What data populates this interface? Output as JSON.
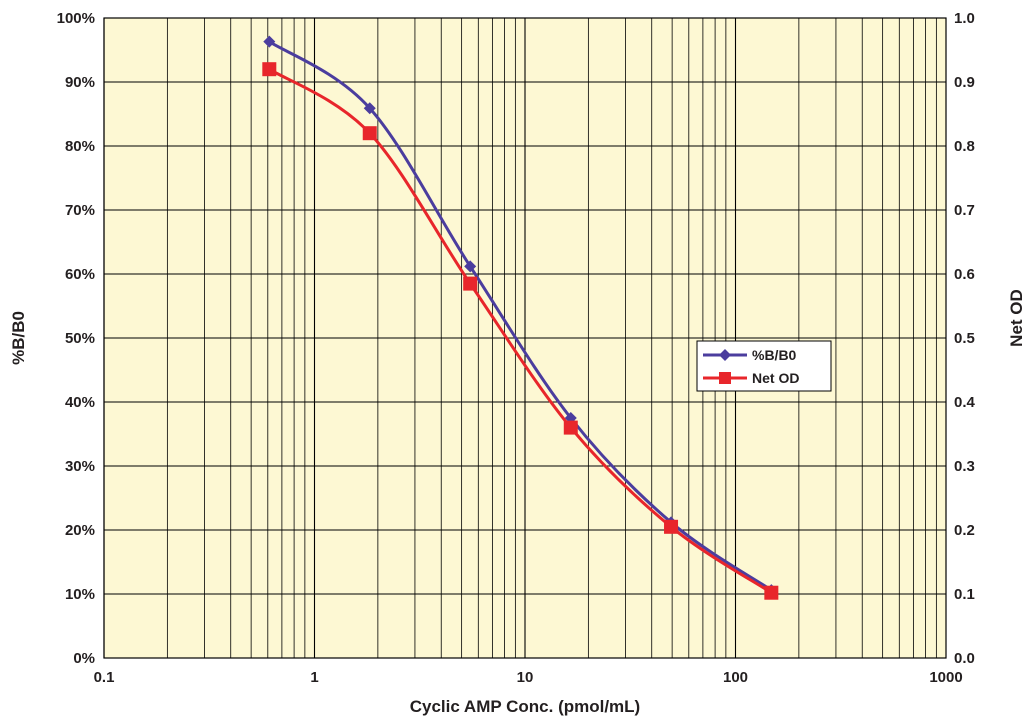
{
  "chart_data": {
    "type": "line",
    "xlabel": "Cyclic AMP Conc. (pmol/mL)",
    "ylabel_left": "%B/B0",
    "ylabel_right": "Net OD",
    "x_scale": "log",
    "xlim": [
      0.1,
      1000
    ],
    "x_ticks": [
      "0.1",
      "1",
      "10",
      "100",
      "1000"
    ],
    "ylim_left": [
      0,
      100
    ],
    "y_ticks_left": [
      "0%",
      "10%",
      "20%",
      "30%",
      "40%",
      "50%",
      "60%",
      "70%",
      "80%",
      "90%",
      "100%"
    ],
    "ylim_right": [
      0,
      1.0
    ],
    "y_ticks_right": [
      "0.0",
      "0.1",
      "0.2",
      "0.3",
      "0.4",
      "0.5",
      "0.6",
      "0.7",
      "0.8",
      "0.9",
      "1.0"
    ],
    "grid": true,
    "legend_position": "right-middle",
    "plot_background": "#fdf8d3",
    "series": [
      {
        "name": "%B/B0",
        "axis": "left",
        "color": "#4b3d9e",
        "marker": "diamond",
        "x": [
          0.61,
          1.83,
          5.49,
          16.5,
          49.4,
          148
        ],
        "y": [
          96.3,
          85.9,
          61.2,
          37.5,
          21.2,
          10.6
        ]
      },
      {
        "name": "Net OD",
        "axis": "right",
        "color": "#e8262b",
        "marker": "square",
        "x": [
          0.61,
          1.83,
          5.49,
          16.5,
          49.4,
          148
        ],
        "y": [
          0.92,
          0.82,
          0.585,
          0.36,
          0.205,
          0.102
        ]
      }
    ]
  }
}
